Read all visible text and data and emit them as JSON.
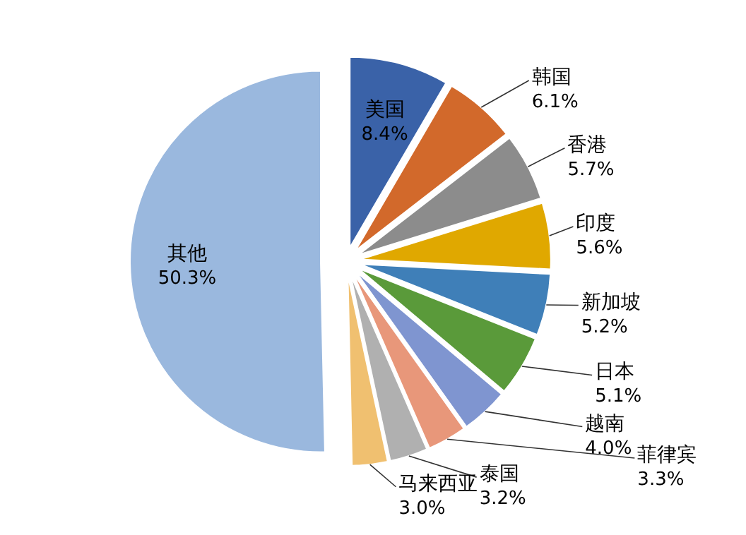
{
  "chart_data": {
    "type": "pie",
    "categories": [
      "美国",
      "韩国",
      "香港",
      "印度",
      "新加坡",
      "日本",
      "越南",
      "菲律宾",
      "泰国",
      "马来西亚",
      "其他"
    ],
    "values": [
      8.4,
      6.1,
      5.7,
      5.6,
      5.2,
      5.1,
      4.0,
      3.3,
      3.2,
      3.0,
      50.3
    ],
    "colors": [
      "#3a62a8",
      "#d2692b",
      "#8c8c8c",
      "#e0a800",
      "#3f7fb8",
      "#5a9a3a",
      "#7f95d0",
      "#e8977a",
      "#b0b0b0",
      "#f0c070",
      "#9ab8de"
    ],
    "value_labels": [
      "8.4%",
      "6.1%",
      "5.7%",
      "5.6%",
      "5.2%",
      "5.1%",
      "4.0%",
      "3.3%",
      "3.2%",
      "3.0%",
      "50.3%"
    ]
  }
}
